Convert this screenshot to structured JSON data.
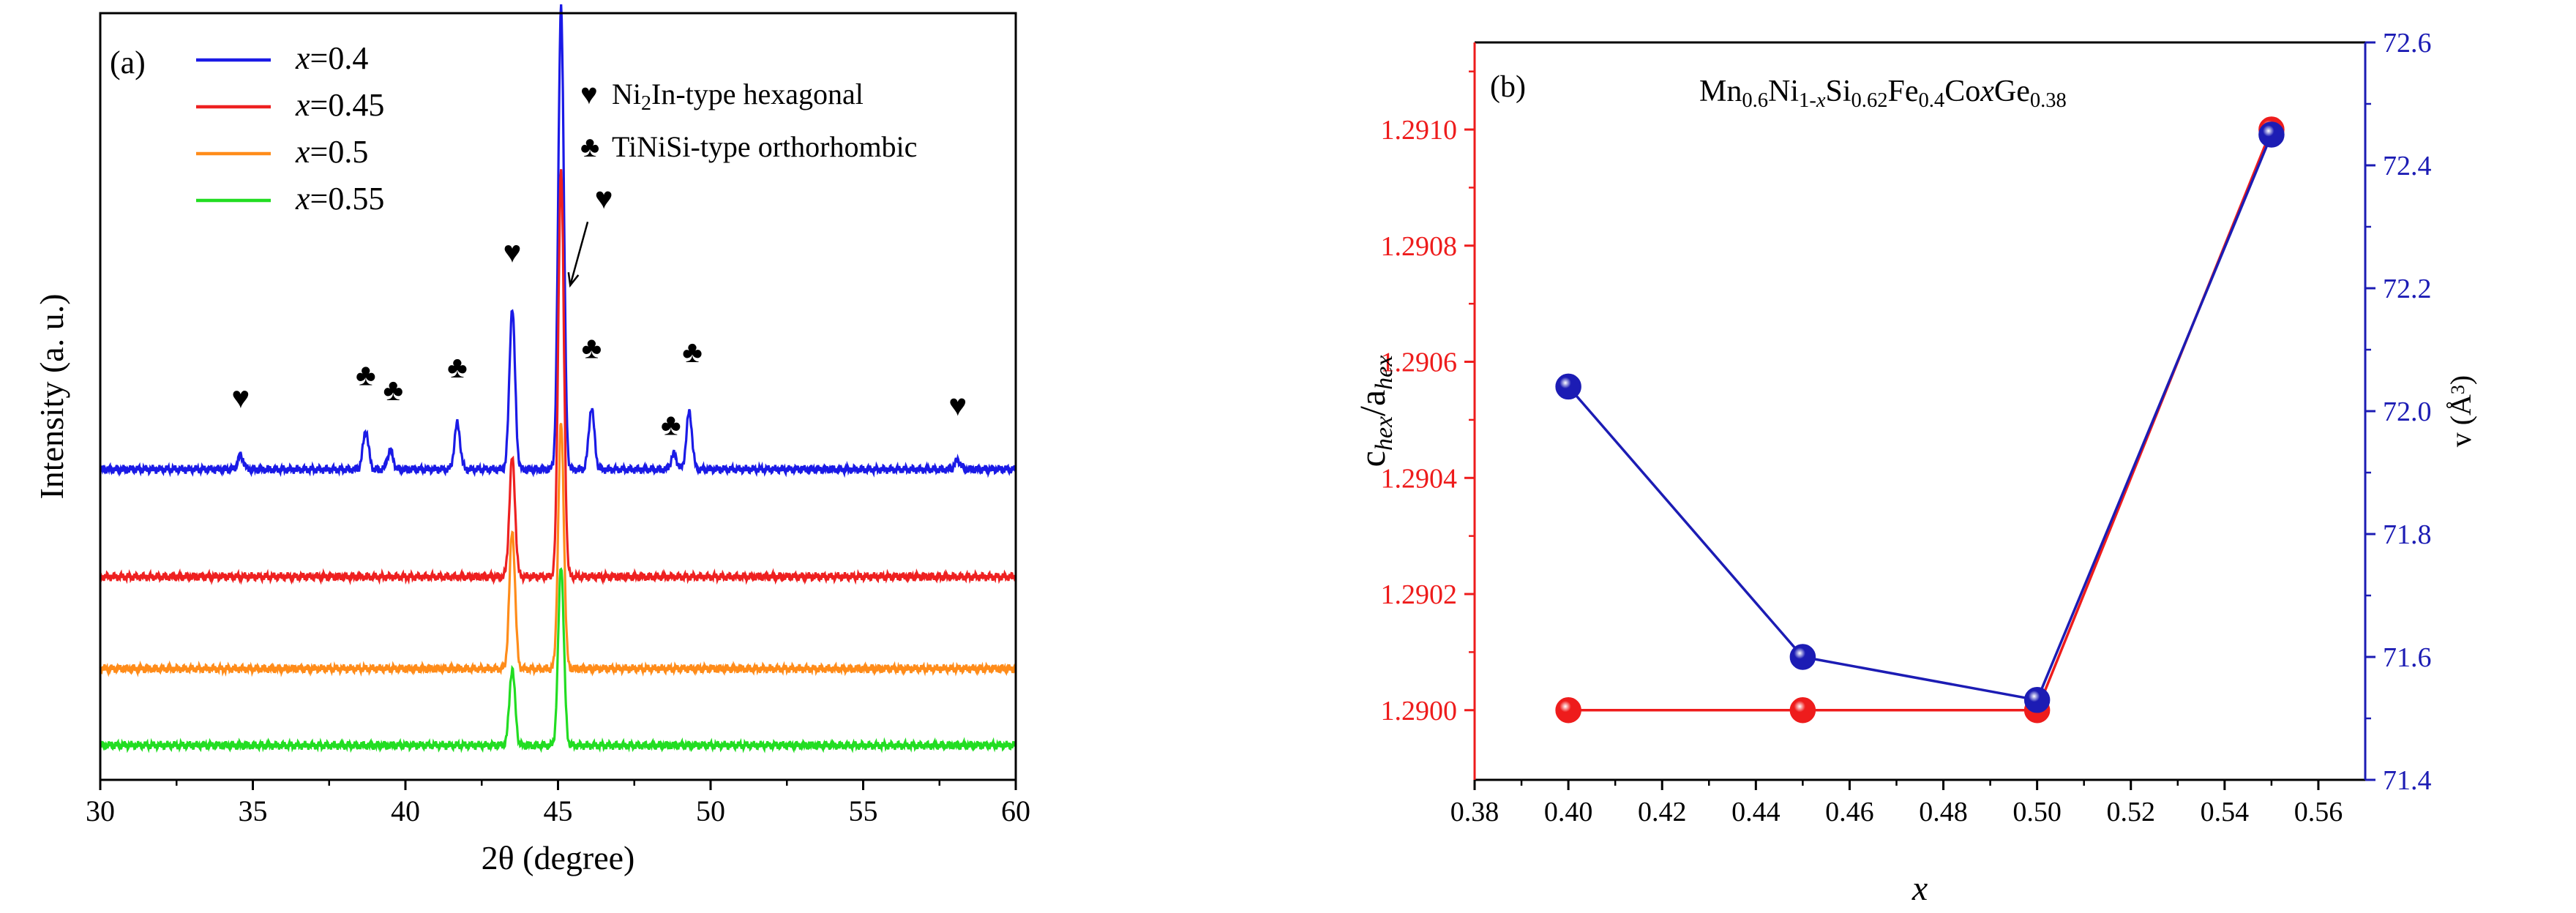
{
  "chart_data": [
    {
      "panel_label": "(a)",
      "type": "line",
      "xlabel": "2θ (degree)",
      "ylabel": "Intensity (a. u.)",
      "xlim": [
        30,
        60
      ],
      "xticks": [
        30,
        35,
        40,
        45,
        50,
        55,
        60
      ],
      "ylim": [
        0,
        100
      ],
      "yticks_shown": false,
      "legend": {
        "position": "top-left",
        "entries": [
          {
            "prefix": "x",
            "text": "=0.4"
          },
          {
            "prefix": "x",
            "text": "=0.45"
          },
          {
            "prefix": "x",
            "text": "=0.5"
          },
          {
            "prefix": "x",
            "text": "=0.55"
          }
        ]
      },
      "phase_legend": [
        {
          "symbol": "♥",
          "parts": [
            "Ni",
            "2",
            "In-type hexagonal"
          ]
        },
        {
          "symbol": "♣",
          "text": "TiNiSi-type orthorhombic"
        }
      ],
      "series": [
        {
          "name": "x=0.4",
          "color": "#1a1ae6",
          "baseline": 40.5,
          "peaks": [
            [
              34.6,
              1.8
            ],
            [
              38.7,
              5.0
            ],
            [
              39.5,
              2.5
            ],
            [
              41.7,
              6.0
            ],
            [
              43.5,
              21.0
            ],
            [
              45.1,
              60.5
            ],
            [
              46.1,
              8.0
            ],
            [
              48.8,
              2.0
            ],
            [
              49.3,
              7.5
            ],
            [
              58.1,
              1.2
            ]
          ]
        },
        {
          "name": "x=0.45",
          "color": "#ee2020",
          "baseline": 26.5,
          "peaks": [
            [
              43.5,
              15.5
            ],
            [
              45.1,
              53.0
            ]
          ]
        },
        {
          "name": "x=0.5",
          "color": "#ff8c1a",
          "baseline": 14.5,
          "peaks": [
            [
              43.5,
              18.0
            ],
            [
              45.1,
              32.0
            ]
          ]
        },
        {
          "name": "x=0.55",
          "color": "#22dd22",
          "baseline": 4.5,
          "peaks": [
            [
              43.5,
              10.0
            ],
            [
              45.1,
              23.5
            ]
          ]
        }
      ],
      "annotations": [
        {
          "symbol": "♥",
          "x": 34.6,
          "y": 48.5
        },
        {
          "symbol": "♣",
          "x": 38.7,
          "y": 51.5
        },
        {
          "symbol": "♣",
          "x": 39.6,
          "y": 49.5
        },
        {
          "symbol": "♣",
          "x": 41.7,
          "y": 52.5
        },
        {
          "symbol": "♥",
          "x": 43.5,
          "y": 67.5
        },
        {
          "symbol": "♥",
          "x": 46.5,
          "y": 74.5,
          "arrow_to": [
            45.4,
            64.5
          ]
        },
        {
          "symbol": "♣",
          "x": 46.1,
          "y": 55.0
        },
        {
          "symbol": "♣",
          "x": 48.7,
          "y": 45.0
        },
        {
          "symbol": "♣",
          "x": 49.4,
          "y": 54.5
        },
        {
          "symbol": "♥",
          "x": 58.1,
          "y": 47.5
        }
      ]
    },
    {
      "panel_label": "(b)",
      "type": "scatter",
      "title_parts": [
        [
          "Mn",
          ""
        ],
        [
          "0.6",
          "sub"
        ],
        [
          "Ni",
          ""
        ],
        [
          "1-",
          "sub"
        ],
        [
          "x",
          "subi"
        ],
        [
          "Si",
          ""
        ],
        [
          "0.62",
          "sub"
        ],
        [
          "Fe",
          ""
        ],
        [
          "0.4",
          "sub"
        ],
        [
          "Co",
          ""
        ],
        [
          "x",
          "i"
        ],
        [
          "Ge",
          ""
        ],
        [
          "0.38",
          "sub"
        ]
      ],
      "xlabel": "x",
      "xlim": [
        0.38,
        0.57
      ],
      "xticks": [
        0.38,
        0.4,
        0.42,
        0.44,
        0.46,
        0.48,
        0.5,
        0.52,
        0.54,
        0.56
      ],
      "y_left": {
        "label_parts": [
          [
            "c",
            ""
          ],
          [
            "hex",
            "subi"
          ],
          [
            "/a",
            ""
          ],
          [
            "hex",
            "subi"
          ]
        ],
        "lim": [
          1.28988,
          1.29115
        ],
        "ticks": [
          "1.2900",
          "1.2902",
          "1.2904",
          "1.2906",
          "1.2908",
          "1.2910"
        ],
        "color": "#ee1c1c"
      },
      "y_right": {
        "label_parts": [
          [
            "v (Å",
            ""
          ],
          [
            "3",
            "sup"
          ],
          [
            ")",
            ""
          ]
        ],
        "lim": [
          71.4,
          72.6
        ],
        "ticks": [
          "71.4",
          "71.6",
          "71.8",
          "72.0",
          "72.2",
          "72.4",
          "72.6"
        ],
        "color": "#1c1cb4"
      },
      "series": [
        {
          "name": "c/a",
          "axis": "left",
          "color": "#ee1c1c",
          "x": [
            0.4,
            0.45,
            0.5,
            0.55
          ],
          "y": [
            1.29,
            1.29,
            1.29,
            1.291
          ]
        },
        {
          "name": "V",
          "axis": "right",
          "color": "#1c1cb4",
          "x": [
            0.4,
            0.45,
            0.5,
            0.55
          ],
          "y": [
            72.04,
            71.6,
            71.53,
            72.45
          ]
        }
      ]
    }
  ]
}
